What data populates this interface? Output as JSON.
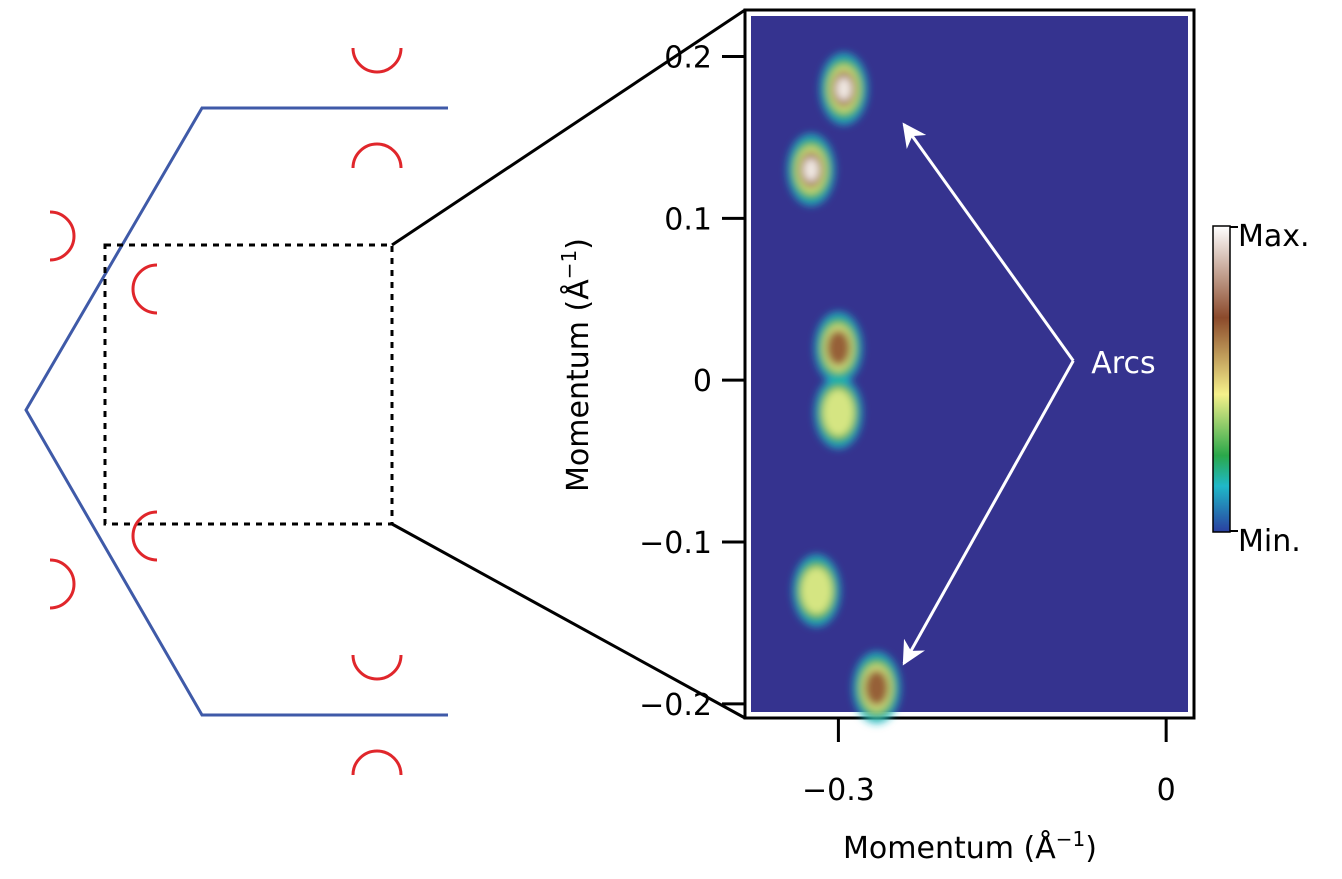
{
  "chart_data": {
    "type": "heatmap",
    "title": "",
    "xlabel": "Momentum (Å",
    "ylabel": "Momentum (Å",
    "axis_label_superscript": "−1",
    "axis_label_close": ")",
    "xlim": [
      -0.38,
      0.02
    ],
    "ylim": [
      -0.205,
      0.225
    ],
    "x_ticks": [
      -0.3,
      0
    ],
    "x_tick_labels": [
      "−0.3",
      "0"
    ],
    "y_ticks": [
      0.2,
      0.1,
      0,
      -0.1,
      -0.2
    ],
    "y_tick_labels": [
      "0.2",
      "0.1",
      "0",
      "−0.1",
      "−0.2"
    ],
    "grid": false,
    "background_color": "#35338f",
    "annotation": "Arcs",
    "annotation_arrow_targets": [
      {
        "x": -0.24,
        "y": 0.158
      },
      {
        "x": -0.24,
        "y": -0.175
      }
    ],
    "annotation_anchor": {
      "x": -0.085,
      "y": 0.012
    },
    "hotspots": [
      {
        "x": -0.295,
        "y": 0.18,
        "intensity": 1.0
      },
      {
        "x": -0.325,
        "y": 0.13,
        "intensity": 0.9
      },
      {
        "x": -0.3,
        "y": 0.02,
        "intensity": 0.7
      },
      {
        "x": -0.3,
        "y": -0.02,
        "intensity": 0.5
      },
      {
        "x": -0.32,
        "y": -0.13,
        "intensity": 0.65
      },
      {
        "x": -0.265,
        "y": -0.19,
        "intensity": 0.75
      }
    ],
    "colorbar": {
      "max_label": "Max.",
      "min_label": "Min.",
      "colors": [
        "#ffffff",
        "#8b4a2b",
        "#f5f08a",
        "#2aa84a",
        "#1fb8c8",
        "#2a3fa0"
      ]
    }
  },
  "schematic": {
    "boundary_color": "#3f5aa8",
    "arc_color": "#e0262b"
  }
}
